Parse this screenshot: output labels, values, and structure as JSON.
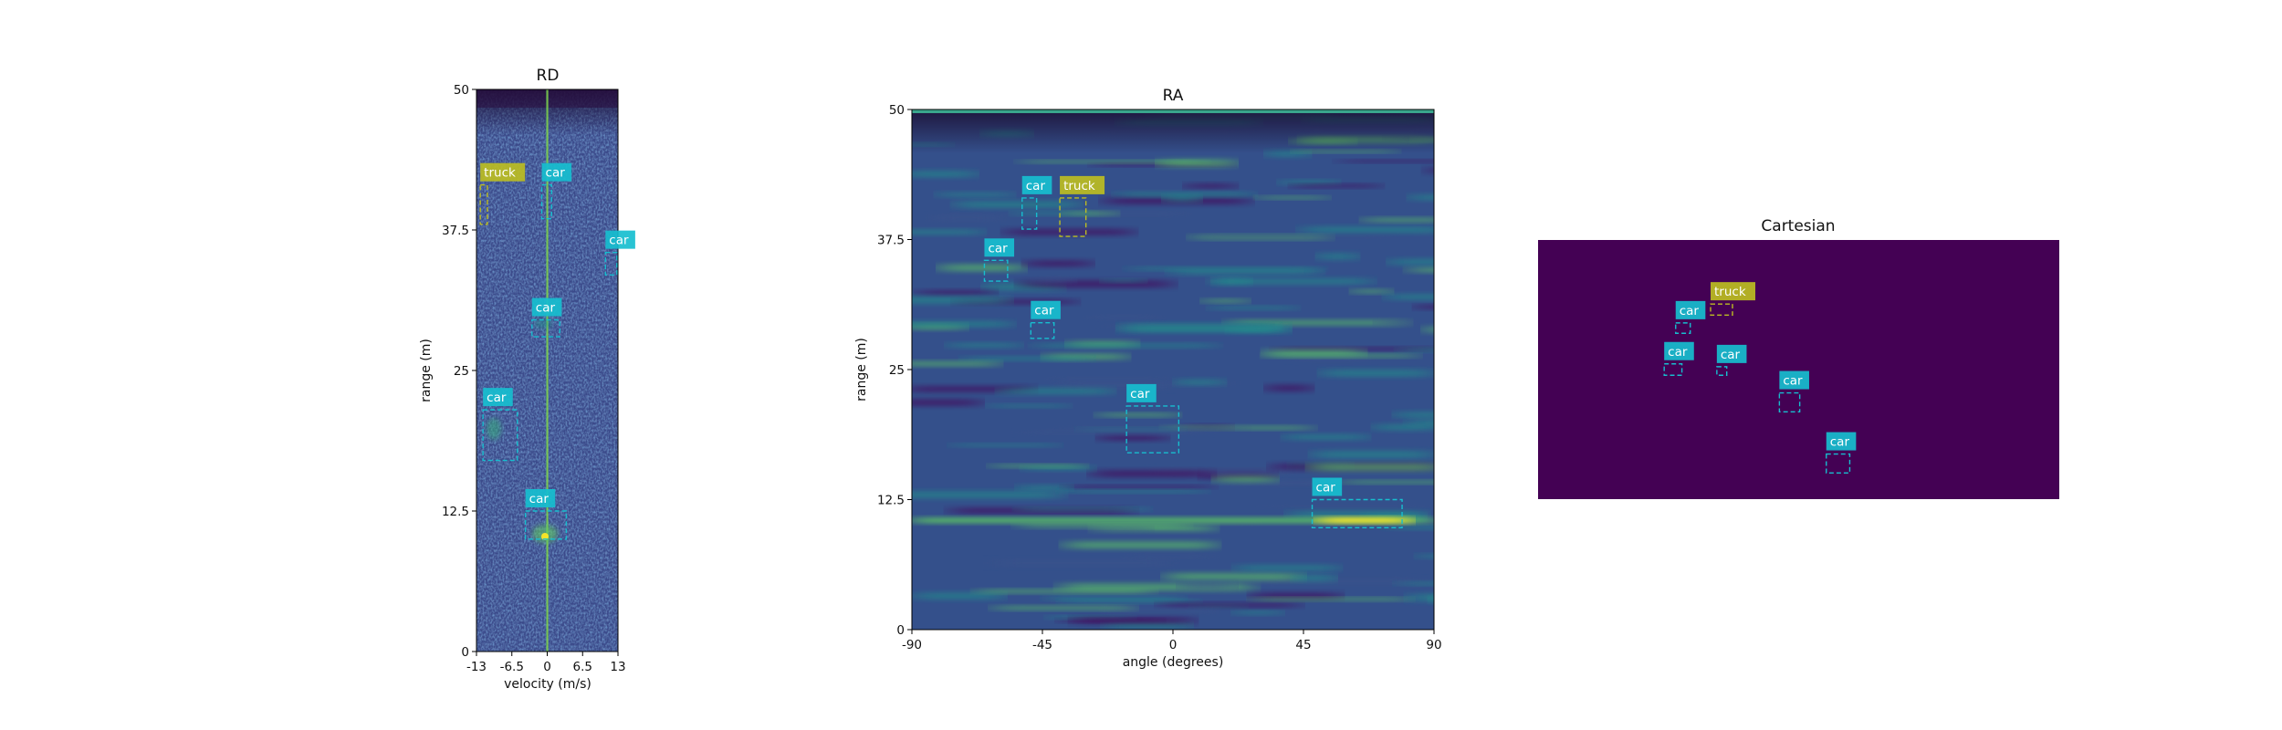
{
  "colors": {
    "car": "#17becf",
    "truck": "#bcbd22",
    "cart_bg": "#440154",
    "heat_low": "#440154",
    "heat_mid": "#3b528b",
    "heat_teal": "#21918c",
    "heat_green": "#5ec962",
    "heat_high": "#fde725"
  },
  "chart_data": [
    {
      "type": "heatmap",
      "title": "RD",
      "xlabel": "velocity (m/s)",
      "ylabel": "range (m)",
      "xlim": [
        -13,
        13
      ],
      "ylim": [
        0,
        50
      ],
      "xticks": [
        -13,
        -6.5,
        0,
        6.5,
        13
      ],
      "xtick_labels": [
        "-13",
        "-6.5",
        "0",
        "6.5",
        "13"
      ],
      "yticks": [
        0,
        12.5,
        25,
        37.5,
        50
      ],
      "ytick_labels": [
        "0",
        "12.5",
        "25",
        "37.5",
        "50"
      ],
      "colormap": "viridis",
      "boxes": [
        {
          "label": "truck",
          "x0": -12.3,
          "x1": -11.0,
          "y0": 38.0,
          "y1": 41.5
        },
        {
          "label": "car",
          "x0": -1.0,
          "x1": 0.8,
          "y0": 38.5,
          "y1": 41.5
        },
        {
          "label": "car",
          "x0": 10.7,
          "x1": 12.8,
          "y0": 33.5,
          "y1": 35.5
        },
        {
          "label": "car",
          "x0": -2.8,
          "x1": 2.3,
          "y0": 28.0,
          "y1": 29.5
        },
        {
          "label": "car",
          "x0": -11.8,
          "x1": -5.5,
          "y0": 17.0,
          "y1": 21.5
        },
        {
          "label": "car",
          "x0": -4.0,
          "x1": 3.5,
          "y0": 10.0,
          "y1": 12.5
        }
      ]
    },
    {
      "type": "heatmap",
      "title": "RA",
      "xlabel": "angle (degrees)",
      "ylabel": "range (m)",
      "xlim": [
        -90,
        90
      ],
      "ylim": [
        0,
        50
      ],
      "xticks": [
        -90,
        -45,
        0,
        45,
        90
      ],
      "xtick_labels": [
        "-90",
        "-45",
        "0",
        "45",
        "90"
      ],
      "yticks": [
        0,
        12.5,
        25,
        37.5,
        50
      ],
      "ytick_labels": [
        "0",
        "12.5",
        "25",
        "37.5",
        "50"
      ],
      "colormap": "viridis",
      "boxes": [
        {
          "label": "car",
          "x0": -52,
          "x1": -47,
          "y0": 38.5,
          "y1": 41.5
        },
        {
          "label": "truck",
          "x0": -39,
          "x1": -30,
          "y0": 37.8,
          "y1": 41.5
        },
        {
          "label": "car",
          "x0": -65,
          "x1": -57,
          "y0": 33.5,
          "y1": 35.5
        },
        {
          "label": "car",
          "x0": -49,
          "x1": -41,
          "y0": 28.0,
          "y1": 29.5
        },
        {
          "label": "car",
          "x0": -16,
          "x1": 2,
          "y0": 17.0,
          "y1": 21.5
        },
        {
          "label": "car",
          "x0": 48,
          "x1": 79,
          "y0": 9.8,
          "y1": 12.5
        }
      ]
    },
    {
      "type": "heatmap",
      "title": "Cartesian",
      "colormap": "viridis",
      "axes_visible": false,
      "boxes": [
        {
          "label": "truck",
          "x0": 0.331,
          "x1": 0.373,
          "y0": 0.71,
          "y1": 0.753
        },
        {
          "label": "car",
          "x0": 0.264,
          "x1": 0.292,
          "y0": 0.64,
          "y1": 0.68
        },
        {
          "label": "car",
          "x0": 0.242,
          "x1": 0.276,
          "y0": 0.478,
          "y1": 0.522
        },
        {
          "label": "car",
          "x0": 0.343,
          "x1": 0.362,
          "y0": 0.478,
          "y1": 0.511
        },
        {
          "label": "car",
          "x0": 0.463,
          "x1": 0.502,
          "y0": 0.337,
          "y1": 0.41
        },
        {
          "label": "car",
          "x0": 0.553,
          "x1": 0.598,
          "y0": 0.101,
          "y1": 0.174
        }
      ]
    }
  ]
}
